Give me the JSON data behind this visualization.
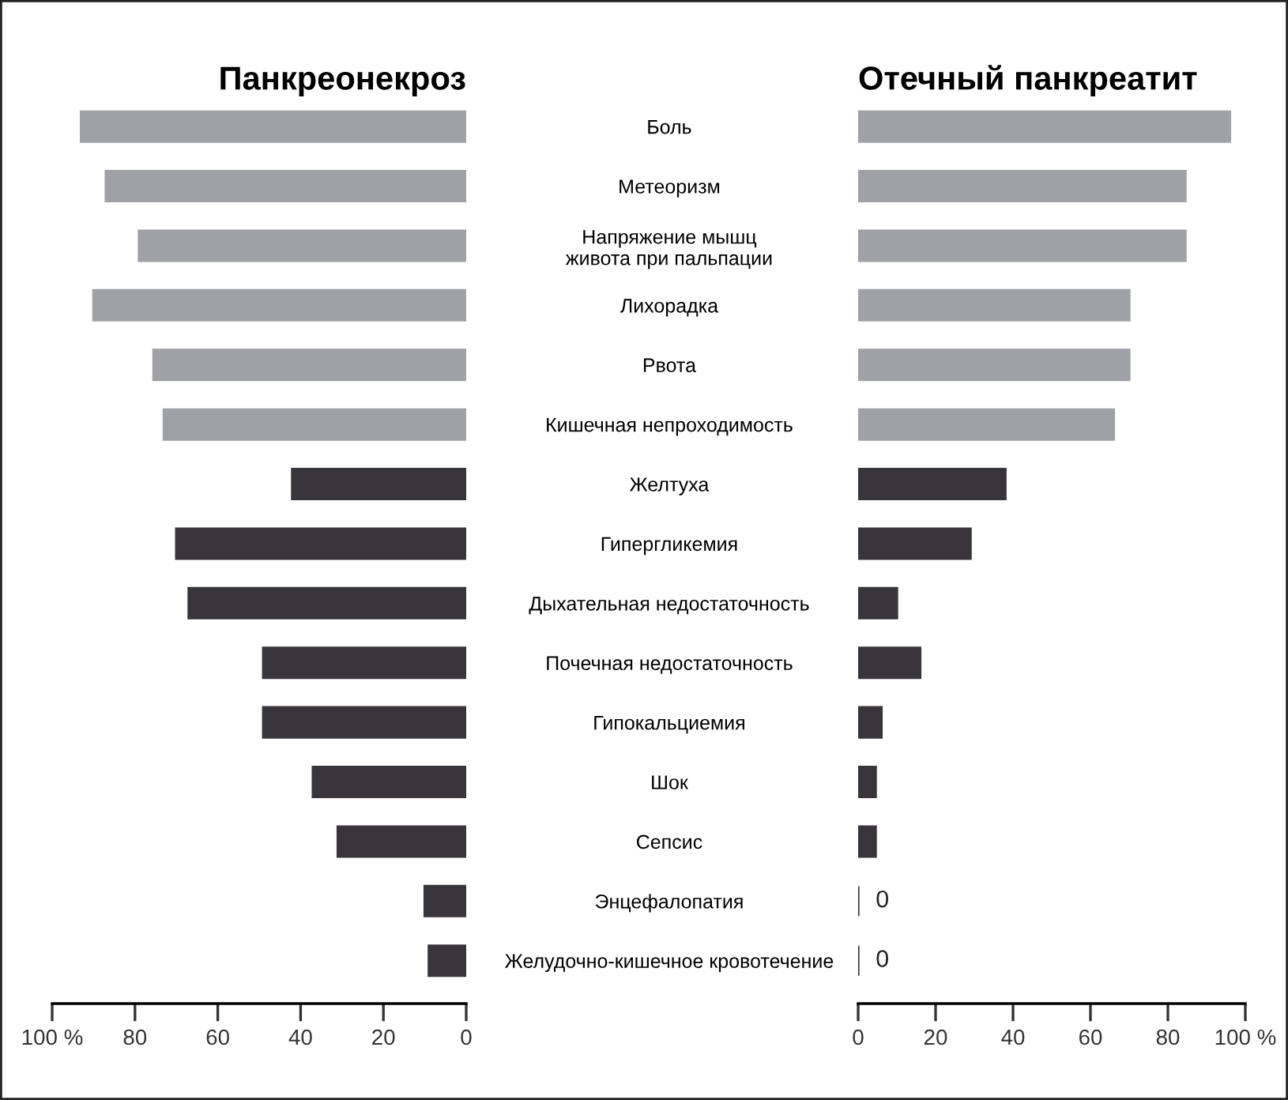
{
  "chart_data": [
    {
      "type": "bar",
      "orientation": "horizontal",
      "title": "Панкреонекроз",
      "categories": [
        "Боль",
        "Метеоризм",
        "Напряжение мышц\nживота при пальпации",
        "Лихорадка",
        "Рвота",
        "Кишечная непроходимость",
        "Желтуха",
        "Гипергликемия",
        "Дыхательная недостаточность",
        "Почечная недостаточность",
        "Гипокальциемия",
        "Шок",
        "Сепсис",
        "Энцефалопатия",
        "Желудочно-кишечное кровотечение"
      ],
      "values": [
        93,
        87,
        79,
        90,
        75.5,
        73,
        42,
        70,
        67,
        49,
        49,
        37,
        31,
        10,
        9
      ],
      "colors": [
        "#a0a1a5",
        "#a0a1a5",
        "#a0a1a5",
        "#a0a1a5",
        "#a0a1a5",
        "#a0a1a5",
        "#38363a",
        "#38363a",
        "#38363a",
        "#38363a",
        "#38363a",
        "#38363a",
        "#38363a",
        "#38363a",
        "#38363a"
      ],
      "xlim": [
        100,
        0
      ],
      "xticks": [
        {
          "value": 100,
          "label": "100 %"
        },
        80,
        60,
        40,
        20,
        0
      ],
      "grid": false,
      "legend": false
    },
    {
      "type": "bar",
      "orientation": "horizontal",
      "title": "Отечный панкреатит",
      "categories": [
        null,
        null,
        null,
        null,
        null,
        null,
        null,
        null,
        null,
        null,
        null,
        null,
        null,
        null,
        null
      ],
      "values": [
        96,
        84.5,
        84.5,
        70,
        70,
        66,
        38,
        29,
        10,
        16,
        6,
        4.5,
        4.5,
        0,
        0
      ],
      "value_labels": [
        null,
        null,
        null,
        null,
        null,
        null,
        null,
        null,
        null,
        null,
        null,
        null,
        null,
        "0",
        "0"
      ],
      "colors": [
        "#a0a1a5",
        "#a0a1a5",
        "#a0a1a5",
        "#a0a1a5",
        "#a0a1a5",
        "#a0a1a5",
        "#38363a",
        "#38363a",
        "#38363a",
        "#38363a",
        "#38363a",
        "#38363a",
        "#38363a",
        "#38363a",
        "#38363a"
      ],
      "xlim": [
        0,
        100
      ],
      "xticks": [
        0,
        20,
        40,
        60,
        80,
        {
          "value": 100,
          "label": "100 %"
        }
      ],
      "grid": false,
      "legend": false
    }
  ]
}
